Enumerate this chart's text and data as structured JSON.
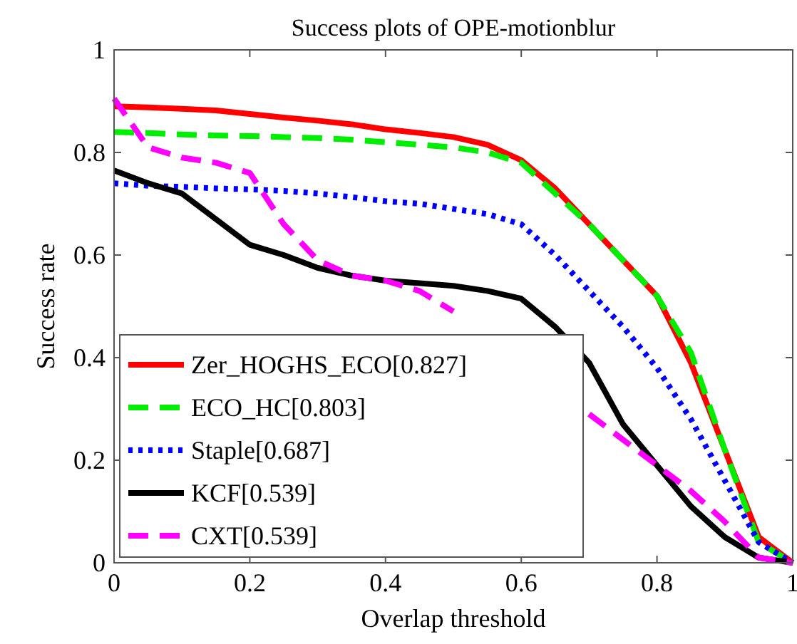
{
  "chart_data": {
    "type": "line",
    "title": "Success plots of OPE-motionblur",
    "xlabel": "Overlap threshold",
    "ylabel": "Success rate",
    "x": [
      0,
      0.05,
      0.1,
      0.15,
      0.2,
      0.25,
      0.3,
      0.35,
      0.4,
      0.45,
      0.5,
      0.55,
      0.6,
      0.65,
      0.7,
      0.75,
      0.8,
      0.85,
      0.9,
      0.95,
      1
    ],
    "xlim": [
      0,
      1
    ],
    "ylim": [
      0,
      1
    ],
    "xticks": [
      0,
      0.2,
      0.4,
      0.6,
      0.8,
      1
    ],
    "yticks": [
      0,
      0.2,
      0.4,
      0.6,
      0.8,
      1
    ],
    "grid": false,
    "legend": "bottom left",
    "marker": "none",
    "series": [
      {
        "name": "Zer_HOGHS_ECO[0.827]",
        "color": "#ff0000",
        "line_style": "solid",
        "values": [
          0.89,
          0.888,
          0.885,
          0.882,
          0.875,
          0.868,
          0.862,
          0.855,
          0.845,
          0.838,
          0.83,
          0.815,
          0.785,
          0.73,
          0.66,
          0.59,
          0.52,
          0.39,
          0.22,
          0.05,
          0
        ]
      },
      {
        "name": "ECO_HC[0.803]",
        "color": "#00ee00",
        "line_style": "dashed",
        "values": [
          0.84,
          0.838,
          0.835,
          0.833,
          0.832,
          0.83,
          0.828,
          0.825,
          0.82,
          0.815,
          0.81,
          0.8,
          0.78,
          0.72,
          0.66,
          0.59,
          0.52,
          0.41,
          0.22,
          0.04,
          0
        ]
      },
      {
        "name": "Staple[0.687]",
        "color": "#0000ff",
        "line_style": "dotted",
        "values": [
          0.74,
          0.735,
          0.733,
          0.73,
          0.728,
          0.725,
          0.72,
          0.713,
          0.705,
          0.7,
          0.69,
          0.68,
          0.66,
          0.6,
          0.53,
          0.46,
          0.38,
          0.28,
          0.16,
          0.04,
          0
        ]
      },
      {
        "name": "KCF[0.539]",
        "color": "#000000",
        "line_style": "solid",
        "values": [
          0.765,
          0.74,
          0.72,
          0.67,
          0.62,
          0.6,
          0.575,
          0.56,
          0.55,
          0.545,
          0.54,
          0.53,
          0.515,
          0.46,
          0.39,
          0.27,
          0.19,
          0.11,
          0.05,
          0.01,
          0
        ]
      },
      {
        "name": "CXT[0.539]",
        "color": "#ff00ff",
        "line_style": "dashed",
        "values": [
          0.905,
          0.81,
          0.79,
          0.78,
          0.76,
          0.66,
          0.59,
          0.56,
          0.55,
          0.53,
          0.49,
          null,
          null,
          null,
          0.29,
          0.24,
          0.19,
          0.14,
          0.08,
          0.01,
          0
        ]
      }
    ]
  }
}
